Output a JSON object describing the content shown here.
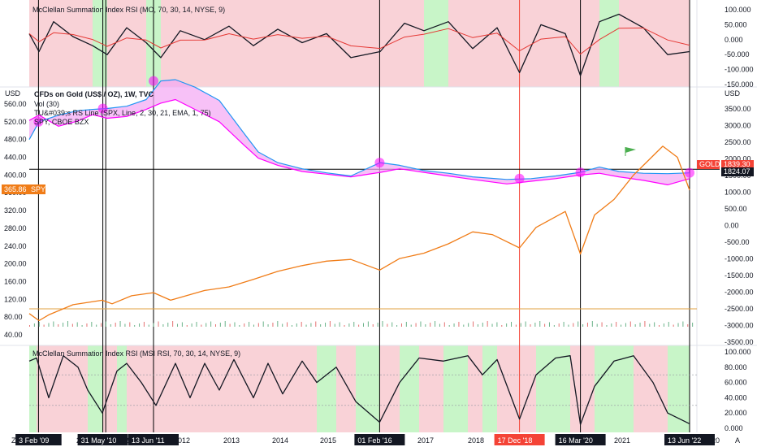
{
  "colors": {
    "zone_green": "#c8f5c8",
    "zone_red": "#f9d2d7",
    "price_blue": "#2196f3",
    "spy_orange": "#f07c17",
    "rs_pink": "#ff00ff",
    "rs_fill": "#f3a6f3",
    "msi_black": "#131722",
    "ema_red": "#e53935",
    "volume_green": "#6bb38a",
    "volume_red": "#e57373",
    "vline_black": "#000000",
    "vline_red": "#f44336",
    "date_tag_black": "#131722",
    "date_tag_red": "#f44336",
    "gold_tag": "#f44336",
    "spy_tag": "#f07c17",
    "hline": "#000000",
    "flag": "#4caf50"
  },
  "panes": {
    "top": {
      "legend": "McClellan Summation Index RSI (MO, 70, 30, 14, NYSE, 9)",
      "ticks": [
        "100.000",
        "50.000",
        "0.000",
        "-50.000",
        "-100.000",
        "-150.000"
      ],
      "tick_values": [
        100,
        50,
        0,
        -50,
        -100,
        -150
      ]
    },
    "main": {
      "left_unit": "USD",
      "right_unit": "USD",
      "legend": [
        "CFDs on Gold (US$ / OZ), 1W, TVC",
        "Vol (30)",
        "TU&#039;s RS Line (SPX, Line, 2, 30, 21, EMA, 1, 75)",
        "SPY, CBOE BZX"
      ],
      "left_ticks": [
        "560.00",
        "520.00",
        "480.00",
        "440.00",
        "400.00",
        "360.00",
        "320.00",
        "280.00",
        "240.00",
        "200.00",
        "160.00",
        "120.00",
        "80.00",
        "40.00"
      ],
      "left_tick_values": [
        560,
        520,
        480,
        440,
        400,
        360,
        320,
        280,
        240,
        200,
        160,
        120,
        80,
        40
      ],
      "right_ticks": [
        "3500.00",
        "3000.00",
        "2500.00",
        "2000.00",
        "1500.00",
        "1000.00",
        "500.00",
        "0.00",
        "-500.00",
        "-1000.00",
        "-1500.00",
        "-2000.00",
        "-2500.00",
        "-3000.00",
        "-3500.00"
      ],
      "right_tick_values": [
        3500,
        3000,
        2500,
        2000,
        1500,
        1000,
        500,
        0,
        -500,
        -1000,
        -1500,
        -2000,
        -2500,
        -3000,
        -3500
      ],
      "spy_tag": "365.86",
      "spy_tag_label": "SPY",
      "gold_tag_label": "GOLD",
      "gold_tag_value": "1839.30",
      "gold_close_tag": "1824.07"
    },
    "bottom": {
      "legend": "McClellan Summation Index RSI (MSI RSI, 70, 30, 14, NYSE, 9)",
      "ticks": [
        "100.000",
        "80.000",
        "60.000",
        "40.000",
        "20.000",
        "0.000"
      ],
      "tick_values": [
        100,
        80,
        60,
        40,
        20,
        0
      ]
    }
  },
  "time_axis": {
    "years": [
      "2012",
      "2013",
      "2014",
      "2015",
      "2017",
      "2018",
      "2021"
    ],
    "partial_labels": [
      "20",
      "201",
      "202",
      "20"
    ],
    "date_tags": [
      {
        "label": "3 Feb '09",
        "color": "black"
      },
      {
        "label": "31 May '10",
        "color": "black"
      },
      {
        "label": "13 Jun '11",
        "color": "black"
      },
      {
        "label": "01 Feb '16",
        "color": "black"
      },
      {
        "label": "17 Dec '18",
        "color": "red"
      },
      {
        "label": "16 Mar '20",
        "color": "black"
      },
      {
        "label": "13 Jun '22",
        "color": "black"
      }
    ],
    "corner_left": "Z",
    "corner_right": "A"
  },
  "chart_data": {
    "type": "line",
    "title": "CFDs on Gold (US$ / OZ), 1W, TVC",
    "x_range": [
      2008.9,
      2022.6
    ],
    "vertical_markers": [
      2009.09,
      2010.41,
      2010.47,
      2011.45,
      2016.09,
      2018.96,
      2020.21,
      2022.45
    ],
    "horizontal_line": 413,
    "series": [
      {
        "name": "CFDs on Gold (US$ / OZ)",
        "axis": "left",
        "x": [
          2008.9,
          2009.1,
          2009.5,
          2009.9,
          2010.2,
          2010.5,
          2010.9,
          2011.3,
          2011.6,
          2011.9,
          2012.3,
          2012.8,
          2013.3,
          2013.6,
          2014.0,
          2014.5,
          2015.0,
          2015.5,
          2016.1,
          2016.5,
          2017.0,
          2017.5,
          2018.0,
          2018.7,
          2019.2,
          2019.7,
          2020.2,
          2020.6,
          2021.0,
          2021.5,
          2022.0,
          2022.45
        ],
        "y": [
          480,
          520,
          535,
          545,
          548,
          550,
          555,
          570,
          612,
          615,
          598,
          568,
          495,
          452,
          428,
          414,
          405,
          398,
          428,
          422,
          410,
          404,
          396,
          390,
          392,
          398,
          406,
          418,
          408,
          404,
          403,
          405
        ]
      },
      {
        "name": "TU's RS Line (SPX, Line, 2, 30, 21, EMA, 1, 75)",
        "axis": "left",
        "x": [
          2008.9,
          2009.1,
          2009.5,
          2009.9,
          2010.2,
          2010.5,
          2010.9,
          2011.3,
          2011.6,
          2011.9,
          2012.3,
          2012.8,
          2013.3,
          2013.6,
          2014.0,
          2014.5,
          2015.0,
          2015.5,
          2016.1,
          2016.5,
          2017.0,
          2017.5,
          2018.0,
          2018.7,
          2019.2,
          2019.7,
          2020.2,
          2020.6,
          2021.0,
          2021.5,
          2022.0,
          2022.45
        ],
        "y": [
          523,
          535,
          510,
          522,
          536,
          528,
          532,
          548,
          562,
          570,
          548,
          520,
          468,
          438,
          422,
          408,
          402,
          396,
          406,
          414,
          406,
          398,
          390,
          380,
          386,
          392,
          400,
          404,
          396,
          388,
          378,
          392
        ]
      },
      {
        "name": "SPY, CBOE BZX",
        "axis": "left",
        "x": [
          2008.9,
          2009.1,
          2009.3,
          2009.8,
          2010.4,
          2010.6,
          2011.0,
          2011.45,
          2011.8,
          2012.5,
          2013.0,
          2013.5,
          2014.0,
          2014.5,
          2015.0,
          2015.5,
          2016.09,
          2016.5,
          2017.0,
          2017.5,
          2018.0,
          2018.4,
          2018.96,
          2019.3,
          2019.9,
          2020.21,
          2020.5,
          2020.9,
          2021.3,
          2021.9,
          2022.2,
          2022.45
        ],
        "y": [
          88,
          72,
          85,
          108,
          118,
          110,
          128,
          135,
          118,
          140,
          148,
          165,
          183,
          196,
          206,
          210,
          186,
          212,
          224,
          245,
          272,
          266,
          236,
          282,
          318,
          222,
          310,
          345,
          400,
          465,
          440,
          366
        ]
      },
      {
        "name": "McClellan Summation Index RSI (MO)",
        "axis": "top",
        "x": [
          2008.9,
          2009.1,
          2009.4,
          2009.8,
          2010.2,
          2010.5,
          2010.9,
          2011.3,
          2011.6,
          2012.0,
          2012.5,
          2013.0,
          2013.5,
          2014.0,
          2014.5,
          2015.0,
          2015.5,
          2016.1,
          2016.6,
          2017.0,
          2017.5,
          2018.0,
          2018.5,
          2018.96,
          2019.4,
          2019.9,
          2020.21,
          2020.6,
          2021.0,
          2021.5,
          2022.0,
          2022.45
        ],
        "y": [
          20,
          -40,
          60,
          10,
          -20,
          -50,
          40,
          -10,
          -60,
          30,
          0,
          45,
          -20,
          35,
          -10,
          20,
          -60,
          -40,
          55,
          30,
          60,
          -30,
          40,
          -110,
          50,
          20,
          -120,
          60,
          85,
          40,
          -50,
          -40
        ]
      },
      {
        "name": "McClellan Summation Index RSI (MSI RSI)",
        "axis": "bottom",
        "x": [
          2008.9,
          2009.05,
          2009.3,
          2009.6,
          2009.9,
          2010.1,
          2010.4,
          2010.7,
          2010.9,
          2011.2,
          2011.5,
          2011.9,
          2012.2,
          2012.5,
          2012.8,
          2013.1,
          2013.5,
          2013.8,
          2014.1,
          2014.5,
          2014.8,
          2015.2,
          2015.6,
          2016.09,
          2016.5,
          2016.9,
          2017.4,
          2017.9,
          2018.2,
          2018.5,
          2018.96,
          2019.3,
          2019.7,
          2020.0,
          2020.21,
          2020.5,
          2020.9,
          2021.3,
          2021.7,
          2022.0,
          2022.45
        ],
        "y": [
          88,
          92,
          40,
          95,
          80,
          50,
          20,
          75,
          85,
          60,
          30,
          85,
          40,
          85,
          50,
          90,
          40,
          85,
          45,
          88,
          60,
          80,
          35,
          8,
          60,
          92,
          88,
          95,
          70,
          90,
          12,
          70,
          92,
          95,
          5,
          55,
          88,
          95,
          60,
          20,
          6
        ]
      }
    ]
  }
}
